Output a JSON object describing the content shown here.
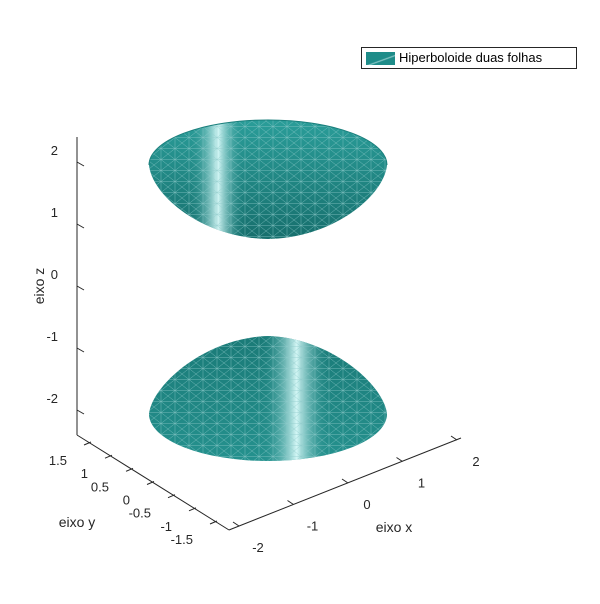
{
  "chart_data": {
    "type": "surface3d",
    "surface": "two-sheet hyperboloid",
    "equation_params": {
      "a": 1.0,
      "b": 1.0,
      "c": 1.0
    },
    "series": [
      {
        "name": "Hiperboloide duas folhas",
        "color": "#1e8c89",
        "mesh_color": "#8fcaca",
        "highlight_color": "#dcfcfb"
      }
    ],
    "sheets": [
      {
        "part": "upper",
        "z_range": [
          1.0,
          2.0
        ]
      },
      {
        "part": "lower",
        "z_range": [
          -2.0,
          -1.0
        ]
      }
    ],
    "x_axis": {
      "label": "eixo x",
      "ticks": [
        -2,
        -1,
        0,
        1,
        2
      ],
      "tick_labels": [
        "-2",
        "-1",
        "0",
        "1",
        "2"
      ]
    },
    "y_axis": {
      "label": "eixo y",
      "ticks": [
        -1.5,
        -1,
        -0.5,
        0,
        0.5,
        1,
        1.5
      ],
      "tick_labels": [
        "-1.5",
        "-1",
        "-0.5",
        "0",
        "0.5",
        "1",
        "1.5"
      ]
    },
    "z_axis": {
      "label": "eixo z",
      "ticks": [
        -2,
        -1,
        0,
        1,
        2
      ],
      "tick_labels": [
        "-2",
        "-1",
        "0",
        "1",
        "2"
      ]
    },
    "legend": {
      "position": "top-right",
      "entries": [
        "Hiperboloide duas folhas"
      ]
    },
    "grid": false,
    "view": "3d default"
  },
  "colors": {
    "axis": "#262626",
    "background": "#ffffff"
  }
}
